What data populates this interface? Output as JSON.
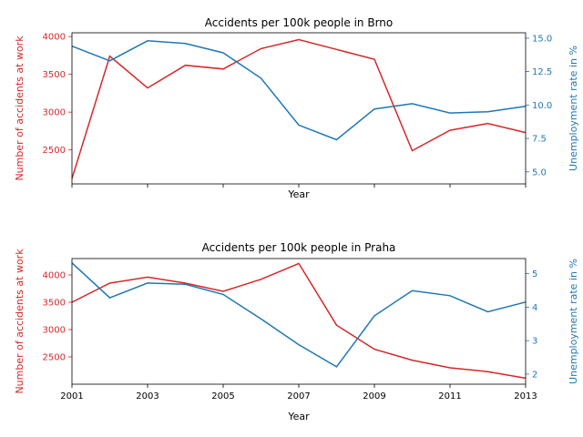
{
  "colors": {
    "accidents": "#d62728",
    "unemployment": "#1f77b4"
  },
  "chart_data": [
    {
      "type": "line",
      "title": "Accidents per 100k people in Brno",
      "xlabel": "Year",
      "ylabel_left": "Number of accidents at work",
      "ylabel_right": "Unemployment rate in %",
      "x": [
        2001,
        2002,
        2003,
        2004,
        2005,
        2006,
        2007,
        2008,
        2009,
        2010,
        2011,
        2012,
        2013
      ],
      "x_tick_labels_visible": false,
      "xlim": [
        2001,
        2013
      ],
      "ylim_left": [
        2050,
        4050
      ],
      "ylim_right": [
        4.1,
        15.4
      ],
      "yticks_left": [
        2500,
        3000,
        3500,
        4000
      ],
      "yticks_right": [
        5.0,
        7.5,
        10.0,
        12.5,
        15.0
      ],
      "ytick_labels_right": [
        "5.0",
        "7.5",
        "10.0",
        "12.5",
        "15.0"
      ],
      "series": [
        {
          "name": "Number of accidents at work",
          "axis": "left",
          "color": "#d62728",
          "values": [
            2120,
            3740,
            3320,
            3620,
            3570,
            3840,
            3960,
            3830,
            3700,
            2490,
            2760,
            2850,
            2730
          ]
        },
        {
          "name": "Unemployment rate in %",
          "axis": "right",
          "color": "#1f77b4",
          "values": [
            14.4,
            13.3,
            14.8,
            14.6,
            13.9,
            12.0,
            8.5,
            7.4,
            9.7,
            10.1,
            9.4,
            9.5,
            9.9
          ]
        }
      ]
    },
    {
      "type": "line",
      "title": "Accidents per 100k people in Praha",
      "xlabel": "Year",
      "ylabel_left": "Number of accidents at work",
      "ylabel_right": "Unemployment rate in %",
      "x": [
        2001,
        2002,
        2003,
        2004,
        2005,
        2006,
        2007,
        2008,
        2009,
        2010,
        2011,
        2012,
        2013
      ],
      "x_tick_labels_visible": true,
      "xticks": [
        2001,
        2003,
        2005,
        2007,
        2009,
        2011,
        2013
      ],
      "xlim": [
        2001,
        2013
      ],
      "ylim_left": [
        2000,
        4300
      ],
      "ylim_right": [
        1.7,
        5.45
      ],
      "yticks_left": [
        2500,
        3000,
        3500,
        4000
      ],
      "yticks_right": [
        2,
        3,
        4,
        5
      ],
      "ytick_labels_right": [
        "2",
        "3",
        "4",
        "5"
      ],
      "series": [
        {
          "name": "Number of accidents at work",
          "axis": "left",
          "color": "#d62728",
          "values": [
            3500,
            3850,
            3960,
            3850,
            3700,
            3920,
            4210,
            3080,
            2640,
            2440,
            2300,
            2230,
            2110
          ]
        },
        {
          "name": "Unemployment rate in %",
          "axis": "right",
          "color": "#1f77b4",
          "values": [
            5.32,
            4.28,
            4.72,
            4.68,
            4.38,
            3.65,
            2.88,
            2.22,
            3.74,
            4.49,
            4.34,
            3.86,
            4.15
          ]
        }
      ]
    }
  ]
}
